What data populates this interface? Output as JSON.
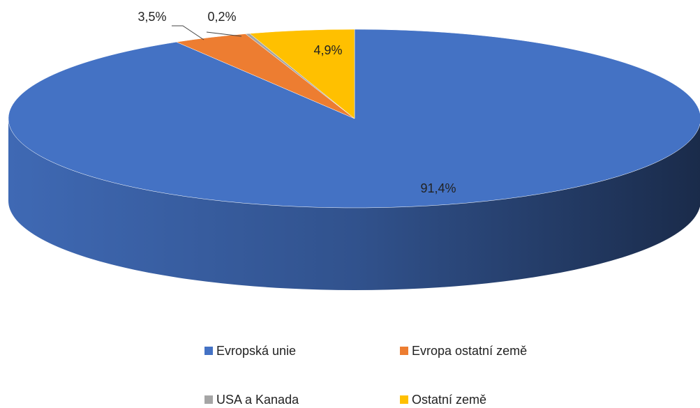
{
  "chart_data": {
    "type": "pie3d",
    "categories": [
      "Evropská unie",
      "Evropa ostatní země",
      "USA a Kanada",
      "Ostatní země"
    ],
    "values": [
      91.4,
      3.5,
      0.2,
      4.9
    ],
    "value_labels": [
      "91,4%",
      "3,5%",
      "0,2%",
      "4,9%"
    ],
    "colors": [
      "#4472c4",
      "#ed7d31",
      "#a5a5a5",
      "#ffc000"
    ],
    "legend": "bottom"
  }
}
